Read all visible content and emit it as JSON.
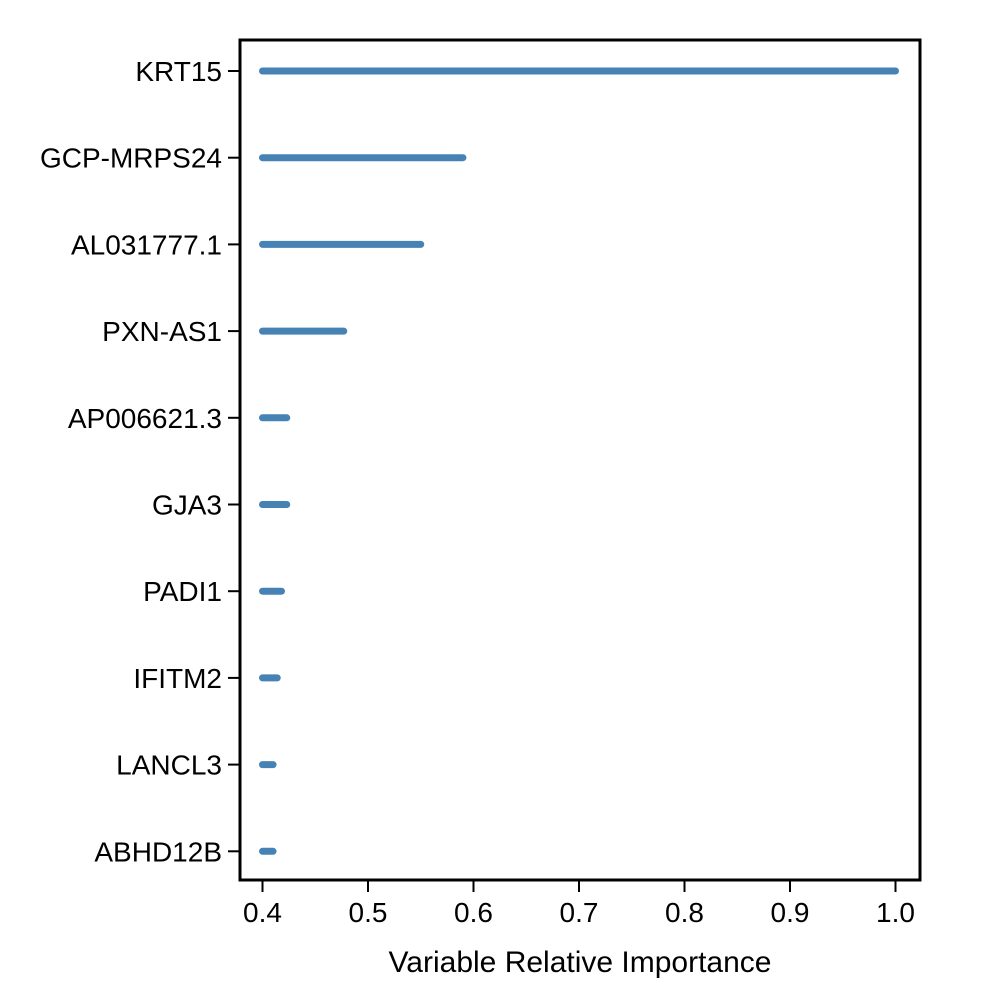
{
  "chart_data": {
    "type": "bar",
    "orientation": "horizontal",
    "title": "",
    "xlabel": "Variable Relative Importance",
    "ylabel": "",
    "categories": [
      "KRT15",
      "GCP-MRPS24",
      "AL031777.1",
      "PXN-AS1",
      "AP006621.3",
      "GJA3",
      "PADI1",
      "IFITM2",
      "LANCL3",
      "ABHD12B"
    ],
    "values": [
      1.0,
      0.59,
      0.55,
      0.477,
      0.423,
      0.423,
      0.418,
      0.414,
      0.41,
      0.41
    ],
    "baseline": 0.4,
    "xlim": [
      0.4,
      1.0
    ],
    "xticks": [
      "0.4",
      "0.5",
      "0.6",
      "0.7",
      "0.8",
      "0.9",
      "1.0"
    ],
    "grid": false,
    "legend": "none",
    "bar_color": "#4682B4"
  }
}
